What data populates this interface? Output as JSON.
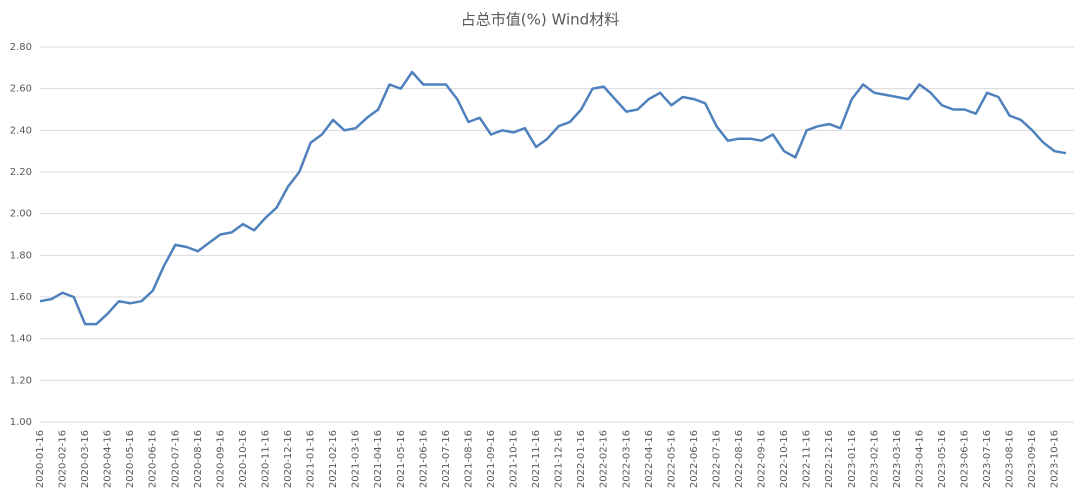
{
  "chart_data": {
    "type": "line",
    "title": "占总市值(%) Wind材料",
    "categories": [
      "2020-01-16",
      null,
      "2020-02-16",
      null,
      "2020-03-16",
      null,
      "2020-04-16",
      null,
      "2020-05-16",
      null,
      "2020-06-16",
      null,
      "2020-07-16",
      null,
      "2020-08-16",
      null,
      "2020-09-16",
      null,
      "2020-10-16",
      null,
      "2020-11-16",
      null,
      "2020-12-16",
      null,
      "2021-01-16",
      null,
      "2021-02-16",
      null,
      "2021-03-16",
      null,
      "2021-04-16",
      null,
      "2021-05-16",
      null,
      "2021-06-16",
      null,
      "2021-07-16",
      null,
      "2021-08-16",
      null,
      "2021-09-16",
      null,
      "2021-10-16",
      null,
      "2021-11-16",
      null,
      "2021-12-16",
      null,
      "2022-01-16",
      null,
      "2022-02-16",
      null,
      "2022-03-16",
      null,
      "2022-04-16",
      null,
      "2022-05-16",
      null,
      "2022-06-16",
      null,
      "2022-07-16",
      null,
      "2022-08-16",
      null,
      "2022-09-16",
      null,
      "2022-10-16",
      null,
      "2022-11-16",
      null,
      "2022-12-16",
      null,
      "2023-01-16",
      null,
      "2023-02-16",
      null,
      "2023-03-16",
      null,
      "2023-04-16",
      null,
      "2023-05-16",
      null,
      "2023-06-16",
      null,
      "2023-07-16",
      null,
      "2023-08-16",
      null,
      "2023-09-16",
      null,
      "2023-10-16",
      null
    ],
    "series": [
      {
        "name": "占总市值(%) Wind材料",
        "color": "#4f81bd",
        "values": [
          1.58,
          1.59,
          1.62,
          1.6,
          1.47,
          1.47,
          1.52,
          1.58,
          1.57,
          1.58,
          1.63,
          1.75,
          1.85,
          1.84,
          1.82,
          1.86,
          1.9,
          1.91,
          1.95,
          1.92,
          1.98,
          2.03,
          2.13,
          2.2,
          2.34,
          2.38,
          2.45,
          2.4,
          2.41,
          2.46,
          2.5,
          2.62,
          2.6,
          2.68,
          2.62,
          2.62,
          2.62,
          2.55,
          2.44,
          2.46,
          2.38,
          2.4,
          2.39,
          2.41,
          2.32,
          2.36,
          2.42,
          2.44,
          2.5,
          2.6,
          2.61,
          2.55,
          2.49,
          2.5,
          2.55,
          2.58,
          2.52,
          2.56,
          2.55,
          2.53,
          2.42,
          2.35,
          2.36,
          2.36,
          2.35,
          2.38,
          2.3,
          2.27,
          2.4,
          2.42,
          2.43,
          2.41,
          2.55,
          2.62,
          2.58,
          2.57,
          2.56,
          2.55,
          2.62,
          2.58,
          2.52,
          2.5,
          2.5,
          2.48,
          2.58,
          2.56,
          2.47,
          2.45,
          2.4,
          2.34,
          2.3,
          2.29
        ]
      }
    ],
    "ylim": [
      1.0,
      2.8
    ],
    "yticks": [
      {
        "value": 1.0,
        "label": "1.00"
      },
      {
        "value": 1.2,
        "label": "1.20"
      },
      {
        "value": 1.4,
        "label": "1.40"
      },
      {
        "value": 1.6,
        "label": "1.60"
      },
      {
        "value": 1.8,
        "label": "1.80"
      },
      {
        "value": 2.0,
        "label": "2.00"
      },
      {
        "value": 2.2,
        "label": "2.20"
      },
      {
        "value": 2.4,
        "label": "2.40"
      },
      {
        "value": 2.6,
        "label": "2.60"
      },
      {
        "value": 2.8,
        "label": "2.80"
      }
    ],
    "grid": true
  }
}
